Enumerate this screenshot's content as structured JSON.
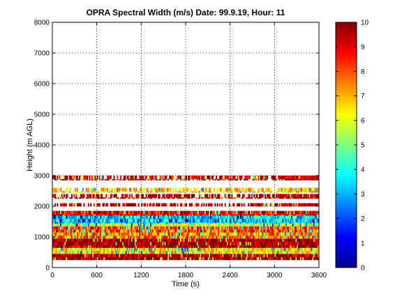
{
  "chart_data": {
    "type": "heatmap",
    "title": "OPRA Spectral Width (m/s)  Date: 99.9.19, Hour: 11",
    "xlabel": "Time (s)",
    "ylabel": "Height (m AGL)",
    "xlim": [
      0,
      3600
    ],
    "ylim": [
      0,
      8000
    ],
    "x_ticks": [
      0,
      600,
      1200,
      1800,
      2400,
      3000,
      3600
    ],
    "y_ticks": [
      0,
      1000,
      2000,
      3000,
      4000,
      5000,
      6000,
      7000,
      8000
    ],
    "grid": true,
    "colormap": "jet",
    "colorbar": {
      "range": [
        0,
        10
      ],
      "ticks": [
        0,
        1,
        2,
        3,
        4,
        5,
        6,
        7,
        8,
        9,
        10
      ]
    },
    "bands": [
      {
        "height_from": 250,
        "height_to": 450,
        "level": 9.8
      },
      {
        "height_from": 450,
        "height_to": 650,
        "level": 6.5
      },
      {
        "height_from": 650,
        "height_to": 950,
        "level": 9.9
      },
      {
        "height_from": 950,
        "height_to": 1150,
        "level": 7.5
      },
      {
        "height_from": 1150,
        "height_to": 1350,
        "level": 8.0
      },
      {
        "height_from": 1350,
        "height_to": 1450,
        "level": 5.5
      },
      {
        "height_from": 1450,
        "height_to": 1700,
        "level": 3.5
      },
      {
        "height_from": 1700,
        "height_to": 1850,
        "level": 9.0
      },
      {
        "height_from": 2000,
        "height_to": 2100,
        "level": 9.5
      },
      {
        "height_from": 2250,
        "height_to": 2400,
        "level": 9.6
      },
      {
        "height_from": 2450,
        "height_to": 2600,
        "level": 6.8
      },
      {
        "height_from": 2850,
        "height_to": 3000,
        "level": 9.3
      }
    ]
  }
}
